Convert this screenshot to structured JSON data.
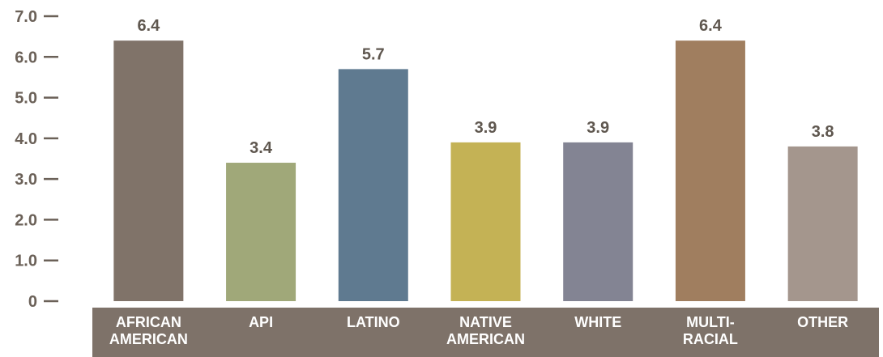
{
  "chart_data": {
    "type": "bar",
    "categories": [
      [
        "AFRICAN",
        "AMERICAN"
      ],
      [
        "API"
      ],
      [
        "LATINO"
      ],
      [
        "NATIVE",
        "AMERICAN"
      ],
      [
        "WHITE"
      ],
      [
        "MULTI-",
        "RACIAL"
      ],
      [
        "OTHER"
      ]
    ],
    "values": [
      6.4,
      3.4,
      5.7,
      3.9,
      3.9,
      6.4,
      3.8
    ],
    "value_labels": [
      "6.4",
      "3.4",
      "5.7",
      "3.9",
      "3.9",
      "6.4",
      "3.8"
    ],
    "colors": [
      "#807369",
      "#a0a879",
      "#5f7a90",
      "#c4b255",
      "#838493",
      "#a07e5f",
      "#a4968d"
    ],
    "yticks": [
      {
        "value": 0,
        "label": "0"
      },
      {
        "value": 1,
        "label": "1.0"
      },
      {
        "value": 2,
        "label": "2.0"
      },
      {
        "value": 3,
        "label": "3.0"
      },
      {
        "value": 4,
        "label": "4.0"
      },
      {
        "value": 5,
        "label": "5.0"
      },
      {
        "value": 6,
        "label": "6.0"
      },
      {
        "value": 7,
        "label": "7.0"
      }
    ],
    "ylim": [
      0,
      7
    ],
    "title": "",
    "xlabel": "",
    "ylabel": "",
    "grid": false,
    "category_band_color": "#7e7269",
    "tick_color": "#6b6158"
  }
}
